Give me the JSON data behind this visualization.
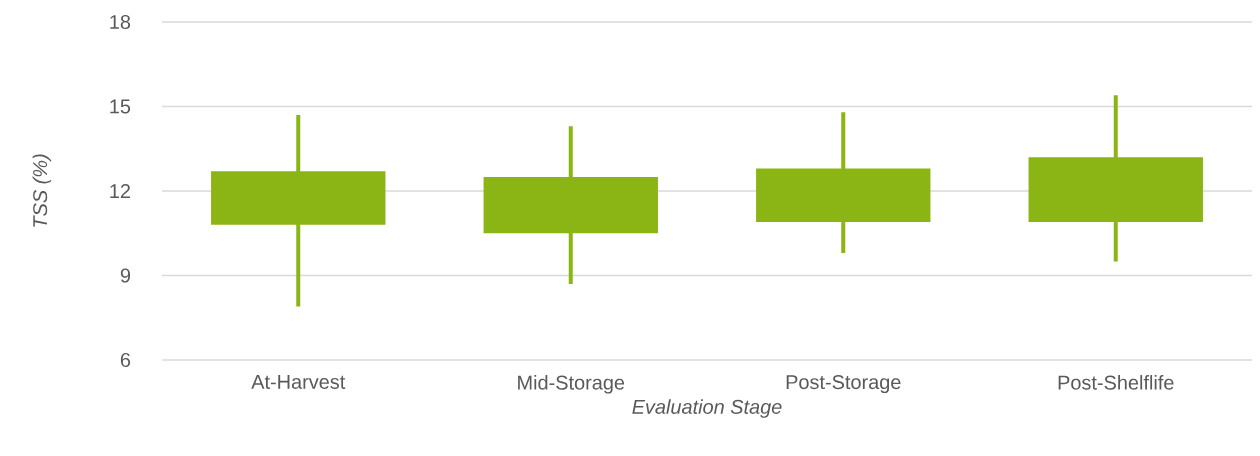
{
  "chart_data": {
    "type": "candlestick",
    "categories": [
      "At-Harvest",
      "Mid-Storage",
      "Post-Storage",
      "Post-Shelflife"
    ],
    "ohlc": [
      [
        10.8,
        14.7,
        7.9,
        12.7
      ],
      [
        10.5,
        14.3,
        8.7,
        12.5
      ],
      [
        10.9,
        14.8,
        9.8,
        12.8
      ],
      [
        10.9,
        15.4,
        9.5,
        13.2
      ]
    ],
    "color": "#8bb514",
    "xlabel": "Evaluation Stage",
    "ylabel": "TSS (%)",
    "ylim": [
      6,
      18
    ],
    "yticks": [
      6,
      9,
      12,
      15,
      18
    ],
    "grid": "y"
  }
}
